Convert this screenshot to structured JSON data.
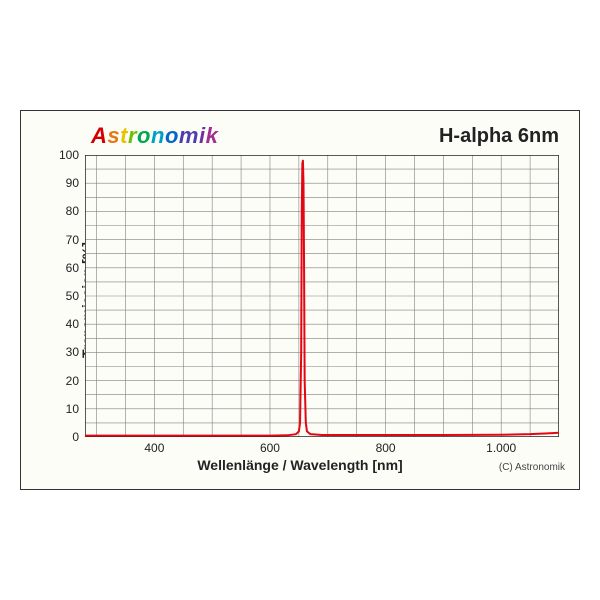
{
  "brand": {
    "text": "Astronomik",
    "letter_colors": [
      "#d40000",
      "#e67817",
      "#e6c200",
      "#6fbf00",
      "#00a651",
      "#00a0c6",
      "#0066cc",
      "#4b3fb0",
      "#7030a0",
      "#a03090",
      "#c02080"
    ]
  },
  "title_right": "H-alpha 6nm",
  "copyright": "(C) Astronomik",
  "chart": {
    "type": "line",
    "background_color": "#fdfdf8",
    "grid_color": "#808080",
    "grid_width": 0.6,
    "axis_color": "#222222",
    "line_color": "#e30613",
    "line_width": 2,
    "xlim": [
      280,
      1100
    ],
    "ylim": [
      0,
      100
    ],
    "xlabel": "Wellenlänge / Wavelength [nm]",
    "ylabel": "Transmission [%]",
    "label_fontsize": 14,
    "tick_fontsize": 12,
    "yticks": [
      0,
      10,
      20,
      30,
      40,
      50,
      60,
      70,
      80,
      90,
      100
    ],
    "ytick_labels": [
      "0",
      "10",
      "20",
      "30",
      "40",
      "50",
      "60",
      "70",
      "80",
      "90",
      "100"
    ],
    "xticks": [
      400,
      600,
      800,
      1000
    ],
    "xtick_labels": [
      "400",
      "600",
      "800",
      "1.000"
    ],
    "ygrid_minor_step": 5,
    "xgrid_step": 50,
    "series": {
      "x": [
        280,
        600,
        630,
        645,
        650,
        652,
        654,
        655,
        656,
        657,
        658,
        659,
        660,
        662,
        664,
        670,
        690,
        900,
        1000,
        1050,
        1080,
        1100
      ],
      "y": [
        0.5,
        0.5,
        0.6,
        1,
        2,
        5,
        30,
        80,
        97,
        98,
        90,
        60,
        20,
        5,
        2,
        1,
        0.7,
        0.7,
        0.8,
        1,
        1.3,
        1.5
      ]
    }
  }
}
